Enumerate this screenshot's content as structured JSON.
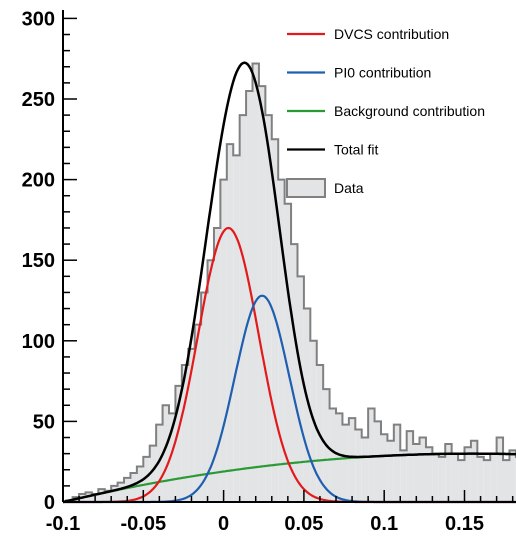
{
  "chart_data": {
    "type": "area",
    "title": "",
    "xlabel": "",
    "ylabel": "",
    "xlim": [
      -0.1,
      0.2
    ],
    "ylim": [
      0,
      310
    ],
    "x_ticks": [
      -0.1,
      -0.05,
      0,
      0.05,
      0.1,
      0.15
    ],
    "x_tick_labels": [
      "-0.1",
      "-0.05",
      "0",
      "0.05",
      "0.1",
      "0.15"
    ],
    "y_ticks": [
      0,
      50,
      100,
      150,
      200,
      250,
      300
    ],
    "y_tick_labels": [
      "0",
      "50",
      "100",
      "150",
      "200",
      "250",
      "300"
    ],
    "grid": false,
    "legend_position": "top-right",
    "legend": [
      {
        "label": "DVCS contribution",
        "color": "#e31a1c",
        "kind": "line"
      },
      {
        "label": "PI0 contribution",
        "color": "#1f5fb0",
        "kind": "line"
      },
      {
        "label": "Background contribution",
        "color": "#2a9a35",
        "kind": "line"
      },
      {
        "label": "Total fit",
        "color": "#000000",
        "kind": "line"
      },
      {
        "label": "Data",
        "color": "#e3e4e6",
        "kind": "hist"
      }
    ],
    "histogram": {
      "name": "Data",
      "bin_width": 0.004,
      "x_start": -0.098,
      "values": [
        1,
        3,
        5,
        6,
        5,
        8,
        7,
        10,
        12,
        15,
        18,
        22,
        28,
        35,
        48,
        60,
        55,
        72,
        85,
        95,
        110,
        130,
        150,
        170,
        200,
        222,
        215,
        240,
        255,
        272,
        258,
        240,
        225,
        200,
        185,
        160,
        140,
        120,
        100,
        85,
        70,
        58,
        55,
        48,
        52,
        45,
        40,
        58,
        50,
        42,
        38,
        48,
        32,
        44,
        36,
        40,
        34,
        30,
        28,
        36,
        30,
        26,
        34,
        38,
        28,
        26,
        30,
        40,
        26,
        32,
        28,
        30,
        38,
        30,
        26,
        24
      ]
    },
    "series": [
      {
        "name": "DVCS contribution",
        "color": "#e31a1c",
        "model": "gaussian",
        "amplitude": 170,
        "mean": 0.003,
        "sigma": 0.019
      },
      {
        "name": "PI0 contribution",
        "color": "#1f5fb0",
        "model": "gaussian",
        "amplitude": 128,
        "mean": 0.024,
        "sigma": 0.017
      },
      {
        "name": "Background contribution",
        "color": "#2a9a35",
        "model": "quadratic",
        "peak": 30,
        "peak_x": 0.155,
        "zero_x": -0.1
      },
      {
        "name": "Total fit",
        "color": "#000000",
        "model": "sum"
      }
    ]
  }
}
